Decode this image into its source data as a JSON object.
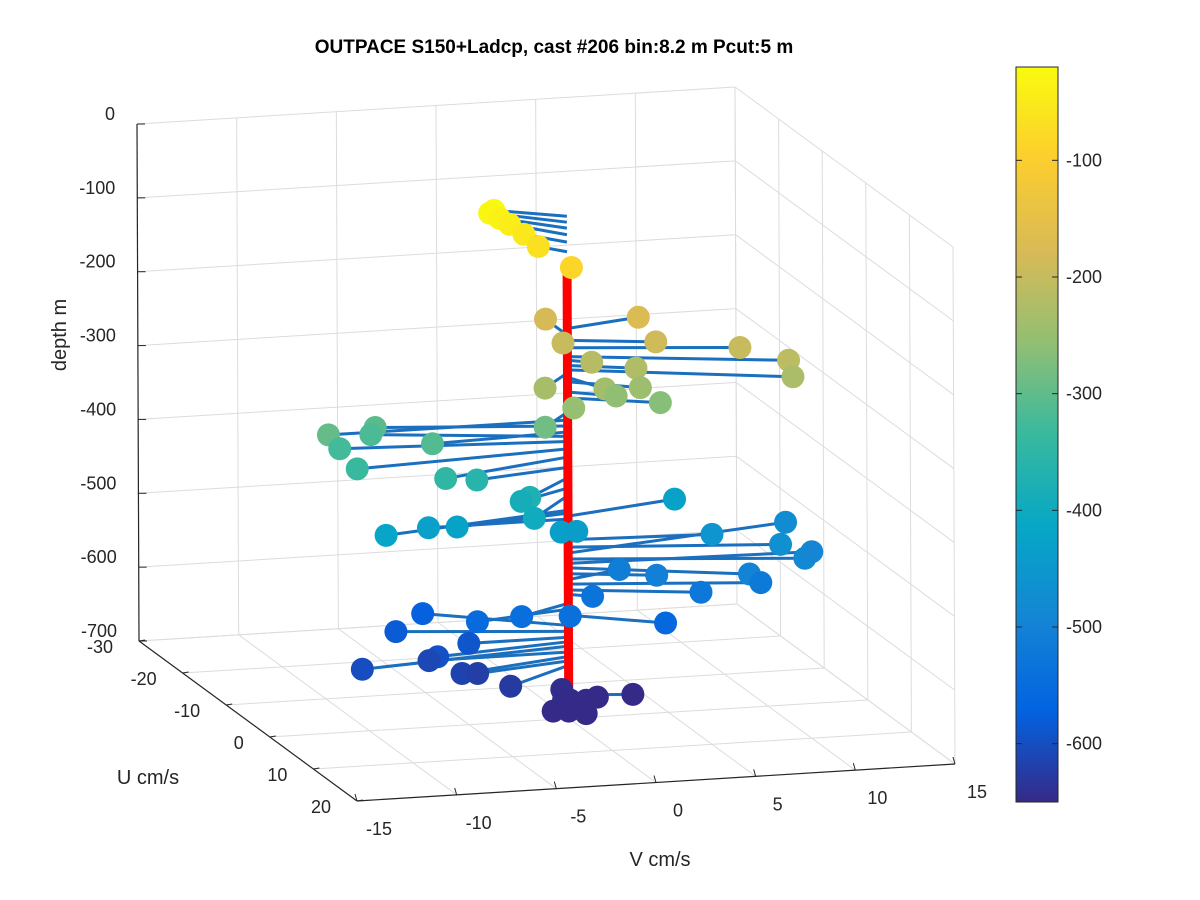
{
  "chart_data": {
    "type": "scatter",
    "title": "OUTPACE S150+Ladcp, cast #206 bin:8.2 m  Pcut:5 m",
    "xlabel": "V cm/s",
    "ylabel": "U cm/s",
    "zlabel": "depth m",
    "xlim": [
      -15,
      15
    ],
    "ylim": [
      -30,
      20
    ],
    "zlim": [
      -700,
      0
    ],
    "x_ticks": [
      "-15",
      "-10",
      "-5",
      "0",
      "5",
      "10",
      "15"
    ],
    "y_ticks": [
      "-30",
      "-20",
      "-10",
      "0",
      "10",
      "20"
    ],
    "z_ticks": [
      "0",
      "-100",
      "-200",
      "-300",
      "-400",
      "-500",
      "-600",
      "-700"
    ],
    "grid": true,
    "colormap": "parula",
    "colorbar": {
      "range": [
        -650,
        -20
      ],
      "ticks": [
        "-100",
        "-200",
        "-300",
        "-400",
        "-500",
        "-600"
      ]
    },
    "colors": {
      "stick_color": "#1a6fbf",
      "station_line_color": "#ff0000"
    },
    "points": [
      {
        "depth": -20,
        "u": -3,
        "v": -3
      },
      {
        "depth": -28,
        "u": -4,
        "v": -3
      },
      {
        "depth": -36,
        "u": -4,
        "v": -2.5
      },
      {
        "depth": -45,
        "u": -4,
        "v": -2
      },
      {
        "depth": -55,
        "u": -3,
        "v": -1.5
      },
      {
        "depth": -68,
        "u": -2,
        "v": -1
      },
      {
        "depth": -85,
        "u": 1,
        "v": 0
      },
      {
        "depth": -172,
        "u": -2,
        "v": 4
      },
      {
        "depth": -181,
        "u": -5,
        "v": 0
      },
      {
        "depth": -188,
        "u": 2,
        "v": 4
      },
      {
        "depth": -196,
        "u": -1,
        "v": 0
      },
      {
        "depth": -198,
        "u": 3,
        "v": 8
      },
      {
        "depth": -210,
        "u": 5,
        "v": 10
      },
      {
        "depth": -215,
        "u": 1,
        "v": 1
      },
      {
        "depth": -222,
        "u": 2,
        "v": 3
      },
      {
        "depth": -228,
        "u": 6,
        "v": 10
      },
      {
        "depth": -232,
        "u": 4,
        "v": -2
      },
      {
        "depth": -238,
        "u": 4,
        "v": 1
      },
      {
        "depth": -244,
        "u": 3,
        "v": 3
      },
      {
        "depth": -252,
        "u": 6,
        "v": -1
      },
      {
        "depth": -258,
        "u": 2,
        "v": 2
      },
      {
        "depth": -266,
        "u": 3,
        "v": 4
      },
      {
        "depth": -285,
        "u": 4,
        "v": -2
      },
      {
        "depth": -296,
        "u": 0,
        "v": -12
      },
      {
        "depth": -304,
        "u": -3,
        "v": -9
      },
      {
        "depth": -312,
        "u": 1,
        "v": -7
      },
      {
        "depth": -318,
        "u": -4,
        "v": -9
      },
      {
        "depth": -325,
        "u": -2,
        "v": -11
      },
      {
        "depth": -335,
        "u": 2,
        "v": -11
      },
      {
        "depth": -346,
        "u": 4,
        "v": -7
      },
      {
        "depth": -360,
        "u": 2,
        "v": -5
      },
      {
        "depth": -374,
        "u": 5,
        "v": -3
      },
      {
        "depth": -388,
        "u": 3,
        "v": -3
      },
      {
        "depth": -398,
        "u": 6,
        "v": -3
      },
      {
        "depth": -418,
        "u": 4,
        "v": -10
      },
      {
        "depth": -422,
        "u": 2,
        "v": -6
      },
      {
        "depth": -426,
        "u": -3,
        "v": 6
      },
      {
        "depth": -430,
        "u": 0,
        "v": -7
      },
      {
        "depth": -433,
        "u": 3,
        "v": -1
      },
      {
        "depth": -438,
        "u": 2,
        "v": 0
      },
      {
        "depth": -458,
        "u": 1,
        "v": 7
      },
      {
        "depth": -468,
        "u": 3,
        "v": 10
      },
      {
        "depth": -476,
        "u": -5,
        "v": 12
      },
      {
        "depth": -484,
        "u": 4,
        "v": 11
      },
      {
        "depth": -490,
        "u": 1,
        "v": 12
      },
      {
        "depth": -496,
        "u": 5,
        "v": 8
      },
      {
        "depth": -504,
        "u": 2,
        "v": 4
      },
      {
        "depth": -512,
        "u": -2,
        "v": 3
      },
      {
        "depth": -518,
        "u": 3,
        "v": 9
      },
      {
        "depth": -526,
        "u": 3,
        "v": 6
      },
      {
        "depth": -532,
        "u": 1,
        "v": 1
      },
      {
        "depth": -538,
        "u": 5,
        "v": -1
      },
      {
        "depth": -544,
        "u": 3,
        "v": -3
      },
      {
        "depth": -552,
        "u": 2,
        "v": -5
      },
      {
        "depth": -560,
        "u": 4,
        "v": 4
      },
      {
        "depth": -574,
        "u": -6,
        "v": -6
      },
      {
        "depth": -582,
        "u": -3,
        "v": -8
      },
      {
        "depth": -590,
        "u": 0,
        "v": -5
      },
      {
        "depth": -596,
        "u": 2,
        "v": -7
      },
      {
        "depth": -602,
        "u": 3,
        "v": -11
      },
      {
        "depth": -610,
        "u": 0,
        "v": -7
      },
      {
        "depth": -616,
        "u": 3,
        "v": -6
      },
      {
        "depth": -622,
        "u": 2,
        "v": -5
      },
      {
        "depth": -628,
        "u": 5,
        "v": -4
      },
      {
        "depth": -636,
        "u": 8,
        "v": -2
      },
      {
        "depth": -646,
        "u": 3,
        "v": -1
      },
      {
        "depth": -652,
        "u": 5,
        "v": -1
      },
      {
        "depth": -658,
        "u": 4,
        "v": 0
      },
      {
        "depth": -664,
        "u": 2,
        "v": 1
      },
      {
        "depth": -668,
        "u": 1,
        "v": 3
      },
      {
        "depth": -676,
        "u": 4,
        "v": 0
      },
      {
        "depth": -684,
        "u": 1,
        "v": -1
      },
      {
        "depth": -690,
        "u": 0,
        "v": 0
      }
    ]
  }
}
